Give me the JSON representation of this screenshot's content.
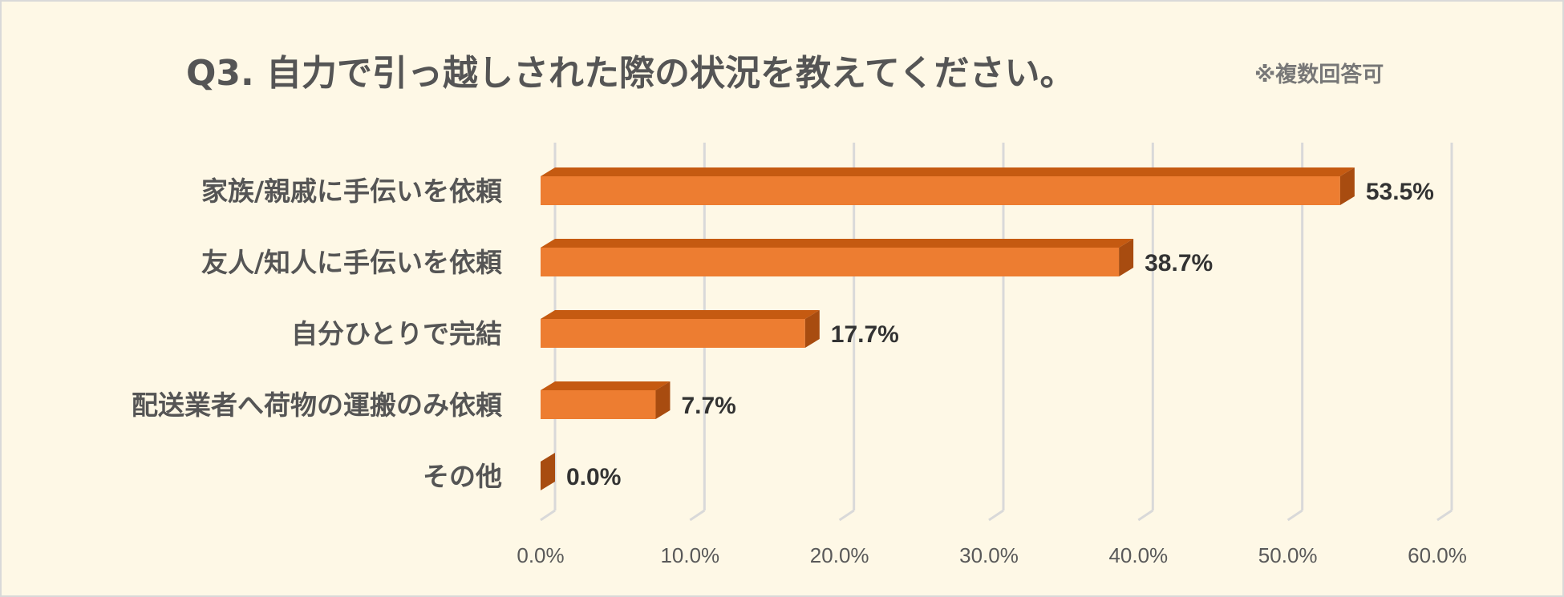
{
  "chart_data": {
    "type": "bar",
    "orientation": "horizontal",
    "title": "Q3. 自力で引っ越しされた際の状況を教えてください。",
    "subtitle": "※複数回答可",
    "categories": [
      "家族/親戚に手伝いを依頼",
      "友人/知人に手伝いを依頼",
      "自分ひとりで完結",
      "配送業者へ荷物の運搬のみ依頼",
      "その他"
    ],
    "values": [
      53.5,
      38.7,
      17.7,
      7.7,
      0.0
    ],
    "value_labels": [
      "53.5%",
      "38.7%",
      "17.7%",
      "7.7%",
      "0.0%"
    ],
    "x_ticks": [
      0,
      10,
      20,
      30,
      40,
      50,
      60
    ],
    "x_tick_labels": [
      "0.0%",
      "10.0%",
      "20.0%",
      "30.0%",
      "40.0%",
      "50.0%",
      "60.0%"
    ],
    "xlim": [
      0,
      60
    ],
    "xlabel": "",
    "ylabel": "",
    "grid": "vertical",
    "legend": "none",
    "style": "3d-clustered-bar"
  },
  "colors": {
    "background": "#fef8e6",
    "border": "#d9d9d9",
    "bar_front": "#ed7d31",
    "bar_top": "#c55a11",
    "bar_side": "#a84c10",
    "gridline": "#d9d9d9"
  }
}
